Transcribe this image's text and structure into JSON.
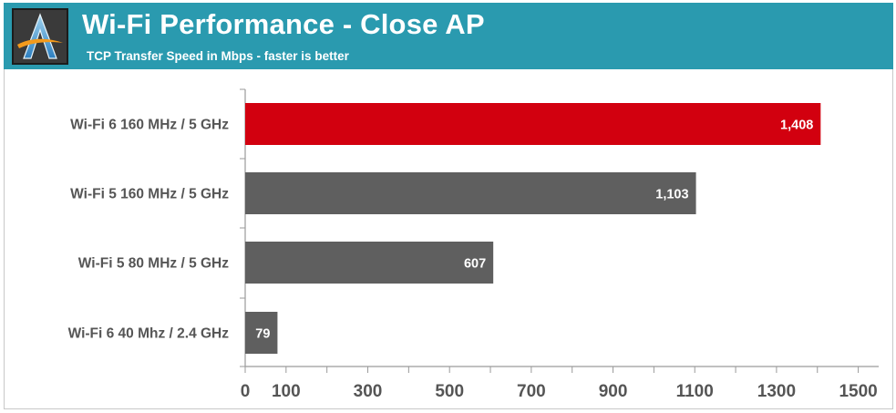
{
  "header": {
    "title": "Wi-Fi Performance - Close AP",
    "subtitle": "TCP Transfer Speed in Mbps - faster is better",
    "logo_icon": "anandtech-a-logo"
  },
  "colors": {
    "header_bg": "#2a9aaf",
    "highlight_bar": "#d2000f",
    "default_bar": "#5f5f5f",
    "axis": "#9a9a9a",
    "label_text": "#555555"
  },
  "chart_data": {
    "type": "bar",
    "orientation": "horizontal",
    "title": "Wi-Fi Performance - Close AP",
    "subtitle": "TCP Transfer Speed in Mbps - faster is better",
    "categories": [
      "Wi-Fi 6 160 MHz / 5 GHz",
      "Wi-Fi 5 160 MHz / 5 GHz",
      "Wi-Fi 5 80 MHz / 5 GHz",
      "Wi-Fi 6 40 Mhz / 2.4 GHz"
    ],
    "values": [
      1408,
      1103,
      607,
      79
    ],
    "value_labels": [
      "1,408",
      "1,103",
      "607",
      "79"
    ],
    "highlight_index": 0,
    "xlim": [
      0,
      1550
    ],
    "xticks": [
      0,
      100,
      300,
      500,
      700,
      900,
      1100,
      1300,
      1500
    ],
    "minor_ticks": [
      200,
      400,
      600,
      800,
      1000,
      1200,
      1400
    ],
    "grid": false,
    "legend": "none",
    "xlabel": "",
    "ylabel": ""
  }
}
